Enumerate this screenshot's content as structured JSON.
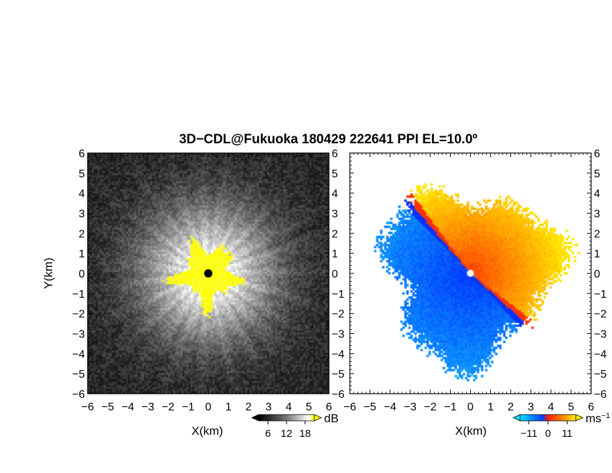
{
  "chart_data": [
    {
      "type": "heatmap",
      "panel": "left",
      "xlabel": "X(km)",
      "ylabel": "Y(km)",
      "xlim": [
        -6,
        6
      ],
      "ylim": [
        -6,
        6
      ],
      "xticks": [
        "−6",
        "−5",
        "−4",
        "−3",
        "−2",
        "−1",
        "0",
        "1",
        "2",
        "3",
        "4",
        "5",
        "6"
      ],
      "yticks": [
        "6",
        "5",
        "4",
        "3",
        "2",
        "1",
        "0",
        "−1",
        "−2",
        "−3",
        "−4",
        "−5",
        "−6"
      ],
      "colorbar": {
        "unit": "dB",
        "ticks": [
          6,
          12,
          18
        ],
        "ticklabels": [
          "6",
          "12",
          "18"
        ],
        "range": [
          3,
          21
        ]
      },
      "saturated_color": "#ffff00",
      "colormap": "grayscale"
    },
    {
      "type": "heatmap",
      "panel": "right",
      "xlabel": "X(km)",
      "ylabel": "",
      "xlim": [
        -6,
        6
      ],
      "ylim": [
        -6,
        6
      ],
      "xticks": [
        "−6",
        "−5",
        "−4",
        "−3",
        "−2",
        "−1",
        "0",
        "1",
        "2",
        "3",
        "4",
        "5",
        "6"
      ],
      "yticks": [
        "6",
        "5",
        "4",
        "3",
        "2",
        "1",
        "0",
        "−1",
        "−2",
        "−3",
        "−4",
        "−5",
        "−6"
      ],
      "colorbar": {
        "unit": "ms",
        "unit_sup": "−1",
        "ticks": [
          -11,
          0,
          11
        ],
        "ticklabels": [
          "−11",
          "0",
          "11"
        ],
        "range": [
          -16,
          16
        ]
      },
      "colormap": "blue-cyan-red-yellow"
    }
  ],
  "title": "3D−CDL@Fukuoka 180429 222641 PPI EL=10.0º"
}
